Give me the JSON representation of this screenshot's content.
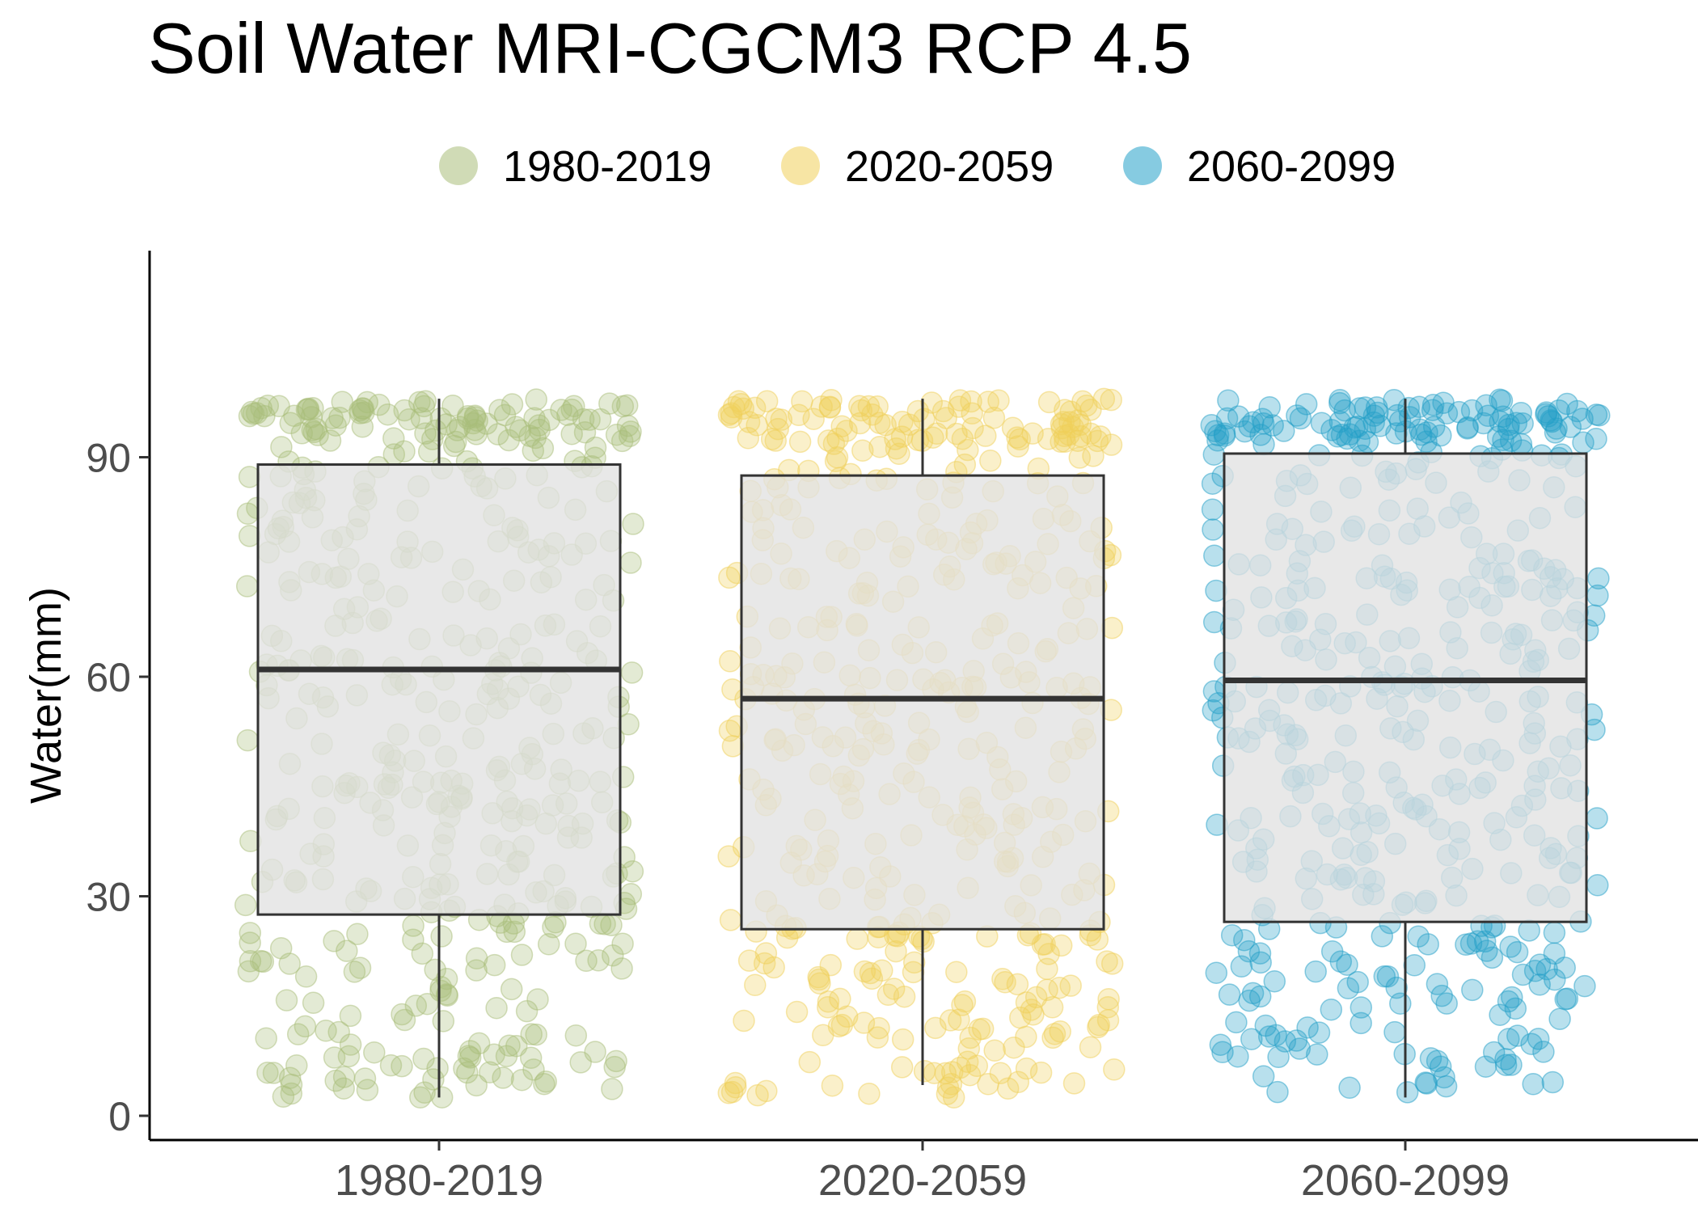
{
  "chart_data": {
    "type": "boxplot",
    "title": "Soil Water MRI-CGCM3 RCP 4.5",
    "xlabel": "",
    "ylabel": "Water(mm)",
    "categories": [
      "1980-2019",
      "2020-2059",
      "2060-2099"
    ],
    "y_ticks": [
      0,
      30,
      60,
      90
    ],
    "ylim": [
      -3.2,
      117.5
    ],
    "legend": {
      "placement": "top",
      "entries": [
        "1980-2019",
        "2020-2059",
        "2060-2099"
      ]
    },
    "grid": false,
    "colors": {
      "1980-2019": "#a9bd7a",
      "2020-2059": "#f0cf5a",
      "2060-2099": "#23a0c8"
    },
    "box_fill": "#e1e1e1",
    "boxes": [
      {
        "category": "1980-2019",
        "min": 2.5,
        "q1": 27.5,
        "median": 61,
        "q3": 89,
        "max": 98
      },
      {
        "category": "2020-2059",
        "min": 4.2,
        "q1": 25.5,
        "median": 57,
        "q3": 87.5,
        "max": 98
      },
      {
        "category": "2060-2099",
        "min": 2.5,
        "q1": 26.5,
        "median": 59.5,
        "q3": 90.5,
        "max": 98
      }
    ],
    "points_per_group": 480,
    "points_note_range": [
      2.5,
      98
    ]
  }
}
